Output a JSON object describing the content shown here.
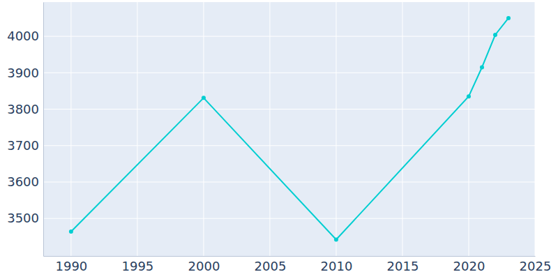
{
  "chart_data": {
    "type": "line",
    "x": [
      1990,
      2000,
      2010,
      2020,
      2021,
      2022,
      2023
    ],
    "values": [
      3464,
      3831,
      3442,
      3835,
      3915,
      4004,
      4050
    ],
    "color": "#00ced1",
    "marker": "circle",
    "xlim": [
      1987.9,
      2025
    ],
    "xticks": [
      1990,
      1995,
      2000,
      2005,
      2010,
      2015,
      2020,
      2025
    ],
    "ylim": [
      3397,
      4094
    ],
    "yticks": [
      3500,
      3600,
      3700,
      3800,
      3900,
      4000
    ],
    "grid": true
  }
}
